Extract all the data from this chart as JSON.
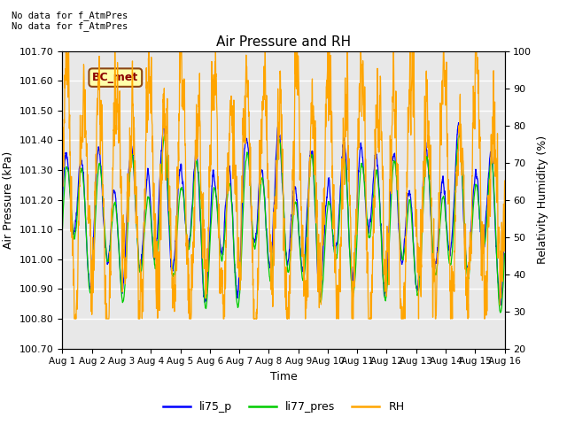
{
  "title": "Air Pressure and RH",
  "xlabel": "Time",
  "ylabel_left": "Air Pressure (kPa)",
  "ylabel_right": "Relativity Humidity (%)",
  "ylim_left": [
    100.7,
    101.7
  ],
  "ylim_right": [
    20,
    100
  ],
  "yticks_left": [
    100.7,
    100.8,
    100.9,
    101.0,
    101.1,
    101.2,
    101.3,
    101.4,
    101.5,
    101.6,
    101.7
  ],
  "yticks_right": [
    20,
    30,
    40,
    50,
    60,
    70,
    80,
    90,
    100
  ],
  "xtick_labels": [
    "Aug 1",
    "Aug 2",
    "Aug 3",
    "Aug 4",
    "Aug 5",
    "Aug 6",
    "Aug 7",
    "Aug 8",
    "Aug 9",
    "Aug 10",
    "Aug 11",
    "Aug 12",
    "Aug 13",
    "Aug 14",
    "Aug 15",
    "Aug 16"
  ],
  "annotation_text": "No data for f_AtmPres\nNo data for f_AtmPres",
  "station_label": "BC_met",
  "legend_labels": [
    "li75_p",
    "li77_pres",
    "RH"
  ],
  "line_colors": [
    "blue",
    "#00cc00",
    "orange"
  ],
  "background_color": "#e8e8e8",
  "grid_color": "white",
  "num_days": 15,
  "seed": 42
}
